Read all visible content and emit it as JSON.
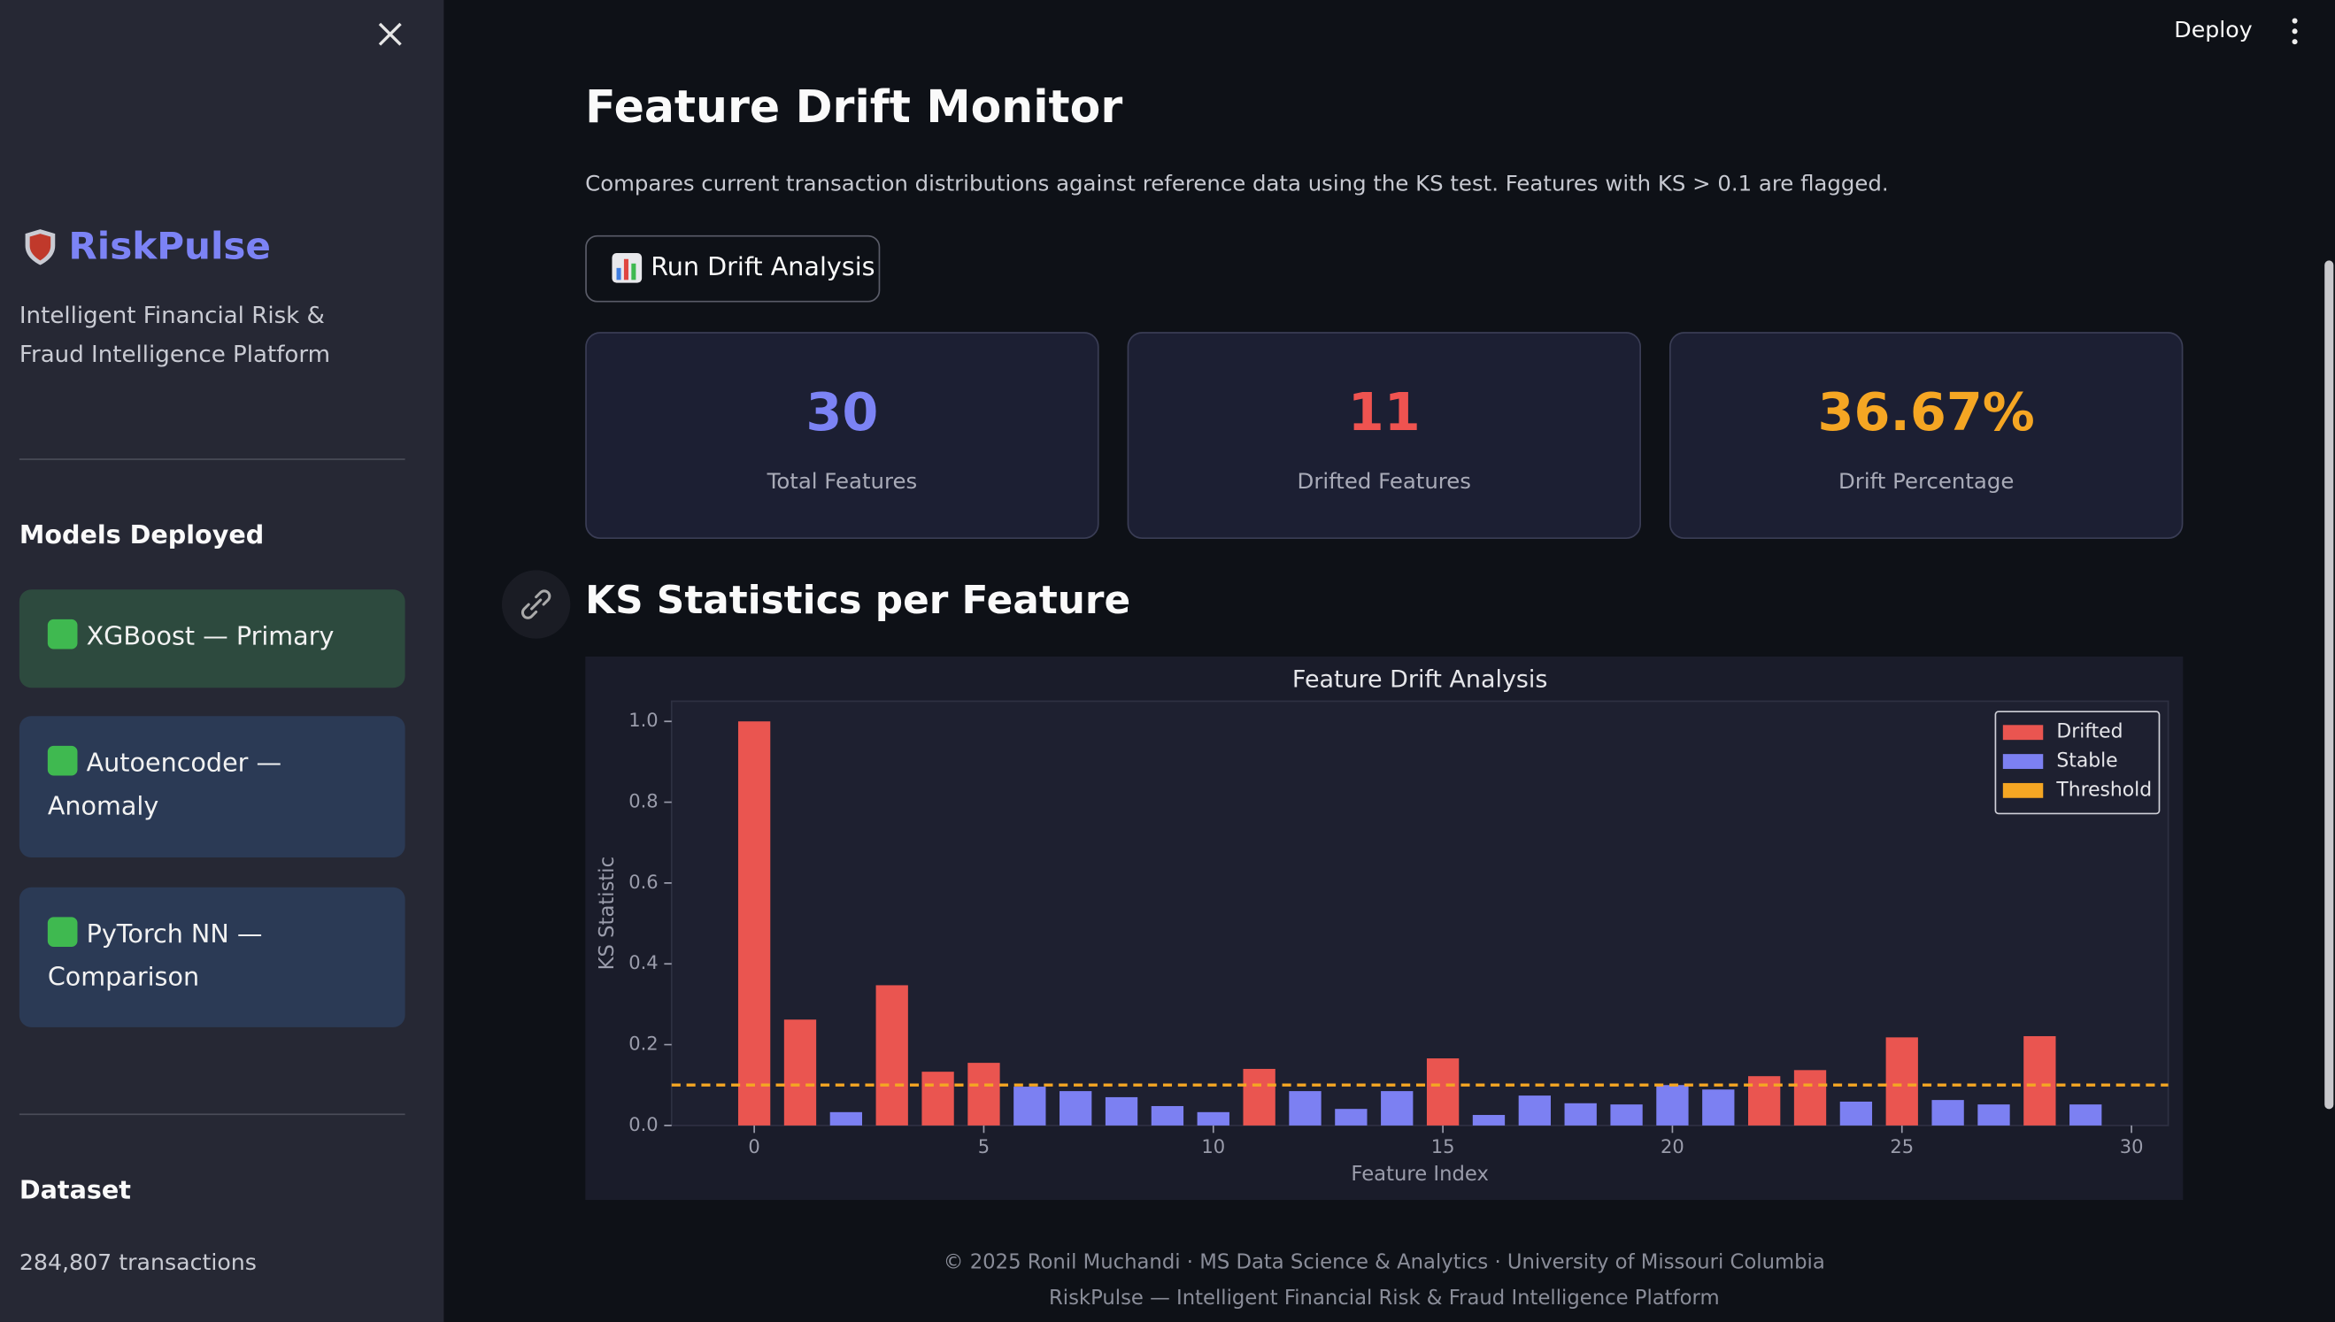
{
  "sidebar": {
    "brand": "RiskPulse",
    "tagline": "Intelligent Financial Risk & Fraud Intelligence Platform",
    "models_heading": "Models Deployed",
    "models": [
      "XGBoost — Primary",
      "Autoencoder — Anomaly",
      "PyTorch NN — Comparison"
    ],
    "dataset_heading": "Dataset",
    "dataset_text": "284,807 transactions"
  },
  "toolbar": {
    "deploy": "Deploy"
  },
  "main": {
    "title": "Feature Drift Monitor",
    "description": "Compares current transaction distributions against reference data using the KS test. Features with KS > 0.1 are flagged.",
    "button": "Run Drift Analysis",
    "metrics": [
      {
        "value": "30",
        "label": "Total Features",
        "color": "#7c83f5"
      },
      {
        "value": "11",
        "label": "Drifted Features",
        "color": "#ef5350"
      },
      {
        "value": "36.67%",
        "label": "Drift Percentage",
        "color": "#f5a623"
      }
    ],
    "section_title": "KS Statistics per Feature"
  },
  "chart_data": {
    "type": "bar",
    "title": "Feature Drift Analysis",
    "x_label": "Feature Index",
    "y_label": "KS Statistic",
    "x": [
      0,
      1,
      2,
      3,
      4,
      5,
      6,
      7,
      8,
      9,
      10,
      11,
      12,
      13,
      14,
      15,
      16,
      17,
      18,
      19,
      20,
      21,
      22,
      23,
      24,
      25,
      26,
      27,
      28,
      29
    ],
    "series": [
      {
        "name": "Drifted",
        "color": "#ea5550",
        "values": [
          1.0,
          0.262,
          null,
          0.347,
          0.133,
          0.155,
          null,
          null,
          null,
          null,
          null,
          0.14,
          null,
          null,
          null,
          0.166,
          null,
          null,
          null,
          null,
          null,
          null,
          0.122,
          0.137,
          null,
          0.218,
          null,
          null,
          0.221,
          null
        ]
      },
      {
        "name": "Stable",
        "color": "#7c80f2",
        "values": [
          null,
          null,
          0.033,
          null,
          null,
          null,
          0.096,
          0.085,
          0.07,
          0.048,
          0.033,
          null,
          0.085,
          0.041,
          0.085,
          null,
          0.026,
          0.074,
          0.055,
          0.052,
          0.1,
          0.089,
          null,
          null,
          0.059,
          null,
          0.063,
          0.052,
          null,
          0.052
        ]
      }
    ],
    "threshold": {
      "name": "Threshold",
      "value": 0.1,
      "color": "#f5a623"
    },
    "xlim": [
      -1.8,
      30.8
    ],
    "ylim": [
      0,
      1.05
    ],
    "xticks": [
      0,
      5,
      10,
      15,
      20,
      25,
      30
    ],
    "yticks": [
      {
        "value": 0,
        "label": "0.0"
      },
      {
        "value": 0.2,
        "label": "0.2"
      },
      {
        "value": 0.4,
        "label": "0.4"
      },
      {
        "value": 0.6,
        "label": "0.6"
      },
      {
        "value": 0.8,
        "label": "0.8"
      },
      {
        "value": 1,
        "label": "1.0"
      }
    ],
    "legend": "upper right"
  },
  "footer": {
    "lines": [
      "© 2025 Ronil Muchandi · MS Data Science & Analytics · University of Missouri Columbia",
      "RiskPulse — Intelligent Financial Risk & Fraud Intelligence Platform"
    ]
  }
}
